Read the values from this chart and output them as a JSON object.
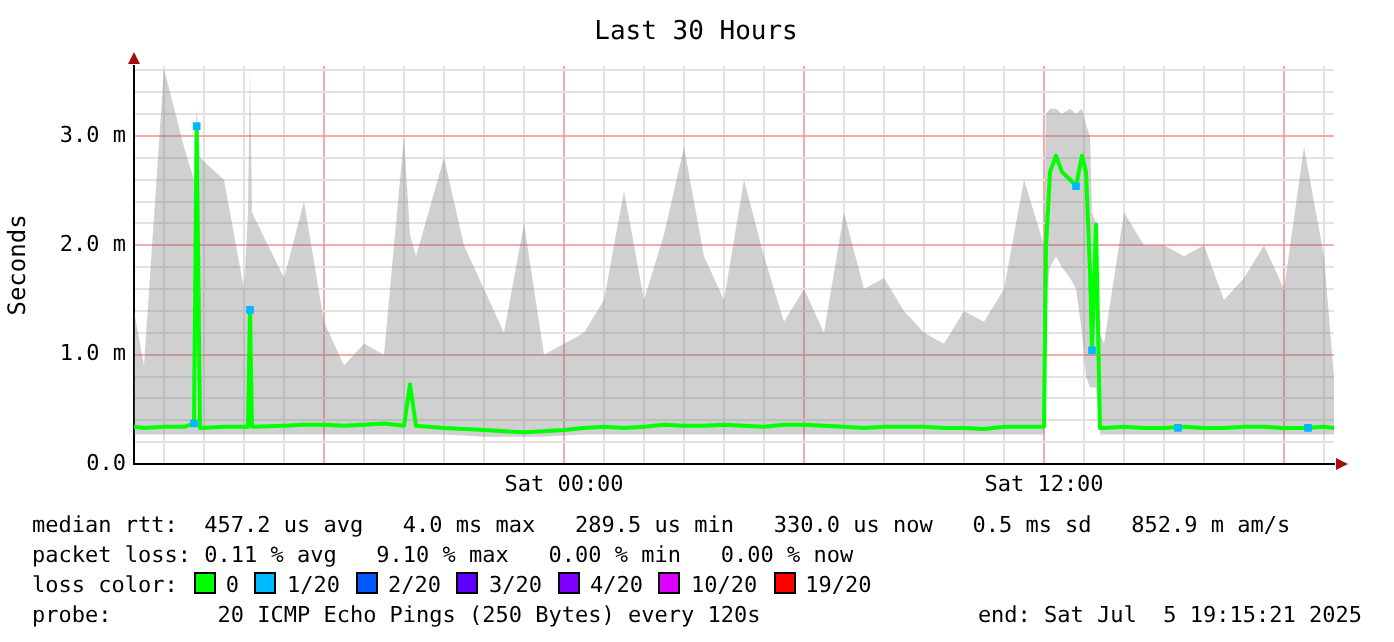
{
  "chart_data": {
    "type": "line",
    "title": "Last 30 Hours",
    "ylabel": "Seconds",
    "legend_title": "loss color:",
    "legend": "bottom",
    "grid": true,
    "xlim": [
      "2025-07-04T13:15",
      "2025-07-05T19:15"
    ],
    "xticks": [
      {
        "value": "2025-07-04T14:00",
        "label": null
      },
      {
        "value": "2025-07-04T15:00",
        "label": null
      },
      {
        "value": "2025-07-04T16:00",
        "label": null
      },
      {
        "value": "2025-07-04T17:00",
        "label": null
      },
      {
        "value": "2025-07-04T18:00",
        "label": null
      },
      {
        "value": "2025-07-04T19:00",
        "label": null
      },
      {
        "value": "2025-07-04T20:00",
        "label": null
      },
      {
        "value": "2025-07-04T21:00",
        "label": null
      },
      {
        "value": "2025-07-04T22:00",
        "label": null
      },
      {
        "value": "2025-07-04T23:00",
        "label": null
      },
      {
        "value": "2025-07-05T00:00",
        "label": "Sat 00:00"
      },
      {
        "value": "2025-07-05T01:00",
        "label": null
      },
      {
        "value": "2025-07-05T02:00",
        "label": null
      },
      {
        "value": "2025-07-05T03:00",
        "label": null
      },
      {
        "value": "2025-07-05T04:00",
        "label": null
      },
      {
        "value": "2025-07-05T05:00",
        "label": null
      },
      {
        "value": "2025-07-05T06:00",
        "label": null
      },
      {
        "value": "2025-07-05T07:00",
        "label": null
      },
      {
        "value": "2025-07-05T08:00",
        "label": null
      },
      {
        "value": "2025-07-05T09:00",
        "label": null
      },
      {
        "value": "2025-07-05T10:00",
        "label": null
      },
      {
        "value": "2025-07-05T11:00",
        "label": null
      },
      {
        "value": "2025-07-05T12:00",
        "label": "Sat 12:00"
      },
      {
        "value": "2025-07-05T13:00",
        "label": null
      },
      {
        "value": "2025-07-05T14:00",
        "label": null
      },
      {
        "value": "2025-07-05T15:00",
        "label": null
      },
      {
        "value": "2025-07-05T16:00",
        "label": null
      },
      {
        "value": "2025-07-05T17:00",
        "label": null
      },
      {
        "value": "2025-07-05T18:00",
        "label": null
      },
      {
        "value": "2025-07-05T19:00",
        "label": null
      }
    ],
    "ylim": [
      0,
      3.64
    ],
    "yticks": [
      {
        "value": 0,
        "label": "0.0"
      },
      {
        "value": 0.2,
        "label": null
      },
      {
        "value": 0.4,
        "label": null
      },
      {
        "value": 0.6,
        "label": null
      },
      {
        "value": 0.8,
        "label": null
      },
      {
        "value": 1,
        "label": "1.0 m"
      },
      {
        "value": 1.2,
        "label": null
      },
      {
        "value": 1.4,
        "label": null
      },
      {
        "value": 1.6,
        "label": null
      },
      {
        "value": 1.8,
        "label": null
      },
      {
        "value": 2,
        "label": "2.0 m"
      },
      {
        "value": 2.2,
        "label": null
      },
      {
        "value": 2.4,
        "label": null
      },
      {
        "value": 2.6,
        "label": null
      },
      {
        "value": 2.8,
        "label": null
      },
      {
        "value": 3,
        "label": "3.0 m"
      },
      {
        "value": 3.2,
        "label": null
      },
      {
        "value": 3.4,
        "label": null
      },
      {
        "value": 3.6,
        "label": null
      }
    ],
    "series": [
      {
        "name": "0",
        "color": "#00ff00",
        "type": "line",
        "x": [
          "2025-07-04T13:15",
          "2025-07-04T13:30",
          "2025-07-04T14:00",
          "2025-07-04T14:30",
          "2025-07-04T14:45",
          "2025-07-04T14:49",
          "2025-07-04T14:54",
          "2025-07-04T15:30",
          "2025-07-04T16:00",
          "2025-07-04T16:06",
          "2025-07-04T16:09",
          "2025-07-04T16:12",
          "2025-07-04T17:00",
          "2025-07-04T17:30",
          "2025-07-04T18:00",
          "2025-07-04T18:30",
          "2025-07-04T19:00",
          "2025-07-04T19:30",
          "2025-07-04T20:00",
          "2025-07-04T20:09",
          "2025-07-04T20:18",
          "2025-07-04T21:00",
          "2025-07-04T21:30",
          "2025-07-04T22:00",
          "2025-07-04T22:30",
          "2025-07-04T23:00",
          "2025-07-04T23:30",
          "2025-07-05T00:00",
          "2025-07-05T00:30",
          "2025-07-05T01:00",
          "2025-07-05T01:30",
          "2025-07-05T02:00",
          "2025-07-05T02:30",
          "2025-07-05T03:00",
          "2025-07-05T03:30",
          "2025-07-05T04:00",
          "2025-07-05T04:30",
          "2025-07-05T05:00",
          "2025-07-05T05:30",
          "2025-07-05T06:00",
          "2025-07-05T06:30",
          "2025-07-05T07:00",
          "2025-07-05T07:30",
          "2025-07-05T08:00",
          "2025-07-05T08:30",
          "2025-07-05T09:00",
          "2025-07-05T09:30",
          "2025-07-05T10:00",
          "2025-07-05T10:30",
          "2025-07-05T11:00",
          "2025-07-05T11:30",
          "2025-07-05T12:00",
          "2025-07-05T12:03",
          "2025-07-05T12:09",
          "2025-07-05T12:18",
          "2025-07-05T12:27",
          "2025-07-05T12:39",
          "2025-07-05T12:48",
          "2025-07-05T12:57",
          "2025-07-05T13:03",
          "2025-07-05T13:09",
          "2025-07-05T13:12",
          "2025-07-05T13:18",
          "2025-07-05T13:24",
          "2025-07-05T13:30",
          "2025-07-05T14:00",
          "2025-07-05T14:30",
          "2025-07-05T15:00",
          "2025-07-05T15:30",
          "2025-07-05T16:00",
          "2025-07-05T16:30",
          "2025-07-05T17:00",
          "2025-07-05T17:30",
          "2025-07-05T18:00",
          "2025-07-05T18:30",
          "2025-07-05T19:00",
          "2025-07-05T19:15"
        ],
        "values": [
          0.34,
          0.33,
          0.34,
          0.34,
          0.37,
          3.09,
          0.33,
          0.34,
          0.34,
          0.34,
          1.41,
          0.34,
          0.35,
          0.36,
          0.36,
          0.35,
          0.36,
          0.37,
          0.35,
          0.73,
          0.35,
          0.33,
          0.32,
          0.31,
          0.3,
          0.29,
          0.3,
          0.31,
          0.33,
          0.34,
          0.33,
          0.34,
          0.36,
          0.35,
          0.35,
          0.36,
          0.35,
          0.34,
          0.36,
          0.36,
          0.35,
          0.34,
          0.33,
          0.34,
          0.34,
          0.34,
          0.33,
          0.33,
          0.32,
          0.34,
          0.34,
          0.34,
          1.99,
          2.67,
          2.82,
          2.67,
          2.6,
          2.54,
          2.82,
          2.67,
          1.77,
          1.04,
          2.19,
          0.33,
          0.33,
          0.34,
          0.33,
          0.33,
          0.34,
          0.33,
          0.33,
          0.34,
          0.34,
          0.33,
          0.33,
          0.34,
          0.33
        ],
        "lower": [
          0.27,
          0.27,
          0.27,
          0.27,
          0.27,
          0.27,
          0.27,
          0.27,
          0.27,
          0.27,
          0.27,
          0.27,
          0.27,
          0.27,
          0.27,
          0.27,
          0.27,
          0.27,
          0.27,
          0.27,
          0.27,
          0.27,
          0.26,
          0.25,
          0.25,
          0.25,
          0.25,
          0.26,
          0.27,
          0.27,
          0.27,
          0.27,
          0.27,
          0.27,
          0.27,
          0.27,
          0.27,
          0.27,
          0.27,
          0.27,
          0.27,
          0.27,
          0.27,
          0.27,
          0.27,
          0.27,
          0.27,
          0.27,
          0.27,
          0.27,
          0.27,
          0.27,
          1.5,
          1.8,
          1.9,
          1.8,
          1.7,
          1.6,
          1.2,
          0.8,
          0.7,
          0.7,
          0.7,
          0.27,
          0.27,
          0.27,
          0.27,
          0.27,
          0.27,
          0.27,
          0.27,
          0.27,
          0.27,
          0.27,
          0.27,
          0.27,
          0.27
        ],
        "upper": [
          1.4,
          0.9,
          3.62,
          2.9,
          2.6,
          3.25,
          2.8,
          2.6,
          1.6,
          2.3,
          3.62,
          2.3,
          1.7,
          2.4,
          1.3,
          0.9,
          1.1,
          1,
          3,
          2.1,
          1.9,
          2.8,
          2,
          1.6,
          1.2,
          2.2,
          1,
          1.1,
          1.2,
          1.5,
          2.5,
          1.5,
          2.1,
          2.9,
          1.9,
          1.5,
          2.6,
          1.9,
          1.3,
          1.6,
          1.2,
          2.3,
          1.6,
          1.7,
          1.4,
          1.2,
          1.1,
          1.4,
          1.3,
          1.6,
          2.6,
          2,
          3.2,
          3.25,
          3.25,
          3.2,
          3.25,
          3.2,
          3.25,
          3.1,
          3,
          2.3,
          2.2,
          1.2,
          1.1,
          2.3,
          2,
          2,
          1.9,
          2,
          1.5,
          1.7,
          2,
          1.6,
          2.9,
          1.9,
          0.8
        ]
      },
      {
        "name": "1/20",
        "color": "#00b8ff",
        "type": "scatter",
        "marker": "square",
        "x": [
          "2025-07-04T14:45",
          "2025-07-04T14:49",
          "2025-07-04T16:09",
          "2025-07-05T12:48",
          "2025-07-05T13:12",
          "2025-07-05T15:21",
          "2025-07-05T18:36"
        ],
        "values": [
          0.37,
          3.09,
          1.41,
          2.54,
          1.04,
          0.33,
          0.33
        ]
      },
      {
        "name": "2/20",
        "color": "#0059ff",
        "type": "scatter",
        "marker": "square"
      },
      {
        "name": "3/20",
        "color": "#5e00ff",
        "type": "scatter",
        "marker": "square"
      },
      {
        "name": "4/20",
        "color": "#7e00ff",
        "type": "scatter",
        "marker": "square"
      },
      {
        "name": "10/20",
        "color": "#dd00ff",
        "type": "scatter",
        "marker": "square"
      },
      {
        "name": "19/20",
        "color": "#ff0000",
        "type": "scatter",
        "marker": "square"
      }
    ],
    "annotations": [
      "median rtt:  457.2 us avg   4.0 ms max   289.5 us min   330.0 us now   0.5 ms sd   852.9 m am/s",
      "packet loss: 0.11 % avg   9.10 % max   0.00 % min   0.00 % now",
      "probe:        20 ICMP Echo Pings (250 Bytes) every 120s",
      "end: Sat Jul  5 19:15:21 2025"
    ]
  }
}
